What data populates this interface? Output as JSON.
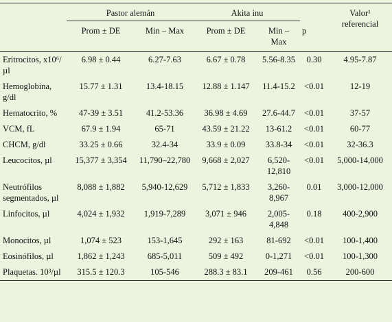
{
  "table": {
    "groups": [
      "Pastor alemán",
      "Akita inu"
    ],
    "subheaders": [
      "Prom ± DE",
      "Min – Max",
      "Prom ± DE",
      "Min – Max",
      "p"
    ],
    "ref_header": "Valor¹ referencial",
    "rows": [
      [
        "Eritrocitos, x10⁶/µl",
        "6.98 ± 0.44",
        "6.27-7.63",
        "6.67 ± 0.78",
        "5.56-8.35",
        "0.30",
        "4.95-7.87"
      ],
      [
        "Hemoglobina, g/dl",
        "15.77 ± 1.31",
        "13.4-18.15",
        "12.88 ± 1.147",
        "11.4-15.2",
        "<0.01",
        "12-19"
      ],
      [
        "Hematocrito, %",
        "47-39 ± 3.51",
        "41.2-53.36",
        "36.98 ± 4.69",
        "27.6-44.7",
        "<0.01",
        "37-57"
      ],
      [
        "VCM, fL",
        "67.9 ± 1.94",
        "65-71",
        "43.59 ± 21.22",
        "13-61.2",
        "<0.01",
        "60-77"
      ],
      [
        "CHCM, g/dl",
        "33.25 ± 0.66",
        "32.4-34",
        "33.9 ± 0.09",
        "33.8-34",
        "<0.01",
        "32-36.3"
      ],
      [
        "Leucocitos, µl",
        "15,377 ± 3,354",
        "11,790–22,780",
        "9,668 ± 2,027",
        "6,520-12,810",
        "<0.01",
        "5,000-14,000"
      ],
      [
        "Neutrófilos segmentados, µl",
        "8,088 ± 1,882",
        "5,940-12,629",
        "5,712 ± 1,833",
        "3,260-8,967",
        "0.01",
        "3,000-12,000"
      ],
      [
        "Linfocitos, µl",
        "4,024 ± 1,932",
        "1,919-7,289",
        "3,071 ± 946",
        "2,005-4,848",
        "0.18",
        "400-2,900"
      ],
      [
        "Monocitos, µl",
        "1,074 ± 523",
        "153-1,645",
        "292 ± 163",
        "81-692",
        "<0.01",
        "100-1,400"
      ],
      [
        "Eosinófilos, µl",
        "1,862 ± 1,243",
        "685-5,011",
        "509 ± 492",
        "0-1,271",
        "<0.01",
        "100-1,300"
      ],
      [
        "Plaquetas. 10³/µl",
        "315.5 ± 120.3",
        "105-546",
        "288.3 ± 83.1",
        "209-461",
        "0.56",
        "200-600"
      ]
    ]
  }
}
